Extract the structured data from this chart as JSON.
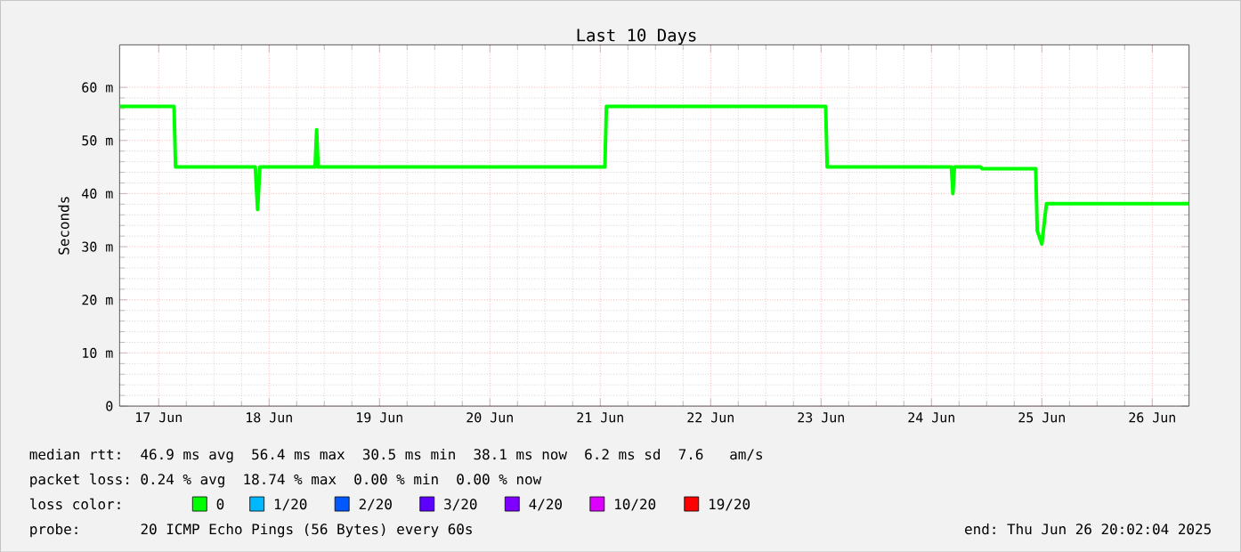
{
  "chart_data": {
    "type": "line",
    "title": "Last 10 Days",
    "ylabel": "Seconds",
    "xlim": [
      "2025-06-17T03:30",
      "2025-06-26T20:00"
    ],
    "xticks": [
      {
        "value": "2025-06-17T12:00",
        "label": "17 Jun"
      },
      {
        "value": "2025-06-18T12:00",
        "label": "18 Jun"
      },
      {
        "value": "2025-06-19T12:00",
        "label": "19 Jun"
      },
      {
        "value": "2025-06-20T12:00",
        "label": "20 Jun"
      },
      {
        "value": "2025-06-21T12:00",
        "label": "21 Jun"
      },
      {
        "value": "2025-06-22T12:00",
        "label": "22 Jun"
      },
      {
        "value": "2025-06-23T12:00",
        "label": "23 Jun"
      },
      {
        "value": "2025-06-24T12:00",
        "label": "24 Jun"
      },
      {
        "value": "2025-06-25T12:00",
        "label": "25 Jun"
      },
      {
        "value": "2025-06-26T12:00",
        "label": "26 Jun"
      }
    ],
    "ylim": [
      0,
      68
    ],
    "yticks": [
      0,
      {
        "value": 10,
        "label": "10 m"
      },
      {
        "value": 20,
        "label": "20 m"
      },
      {
        "value": 30,
        "label": "30 m"
      },
      {
        "value": 40,
        "label": "40 m"
      },
      {
        "value": 50,
        "label": "50 m"
      },
      {
        "value": 60,
        "label": "60 m"
      }
    ],
    "x": [
      "2025-06-17T03:30",
      "2025-06-17T15:20",
      "2025-06-17T15:40",
      "2025-06-18T09:00",
      "2025-06-18T09:30",
      "2025-06-18T10:00",
      "2025-06-18T22:00",
      "2025-06-18T22:20",
      "2025-06-18T22:40",
      "2025-06-21T13:00",
      "2025-06-21T13:20",
      "2025-06-23T13:00",
      "2025-06-23T13:20",
      "2025-06-24T16:20",
      "2025-06-24T16:40",
      "2025-06-24T17:00",
      "2025-06-24T22:40",
      "2025-06-24T23:00",
      "2025-06-25T10:40",
      "2025-06-25T11:00",
      "2025-06-25T12:00",
      "2025-06-25T13:00",
      "2025-06-26T20:00"
    ],
    "series": [
      {
        "name": "0",
        "color": "#00ff00",
        "values": [
          56.4,
          56.4,
          45,
          45,
          37,
          45,
          45,
          52,
          45,
          45,
          56.4,
          56.4,
          45,
          45,
          40,
          45,
          45,
          44.7,
          44.7,
          33,
          30.5,
          38.1,
          38.1
        ]
      },
      {
        "name": "1/20",
        "color": "#00b8ff",
        "values": [
          null,
          null,
          null,
          null,
          null,
          null,
          null,
          null,
          null,
          null,
          null,
          null,
          null,
          null,
          null,
          null,
          null,
          null,
          null,
          null,
          null,
          null,
          null
        ]
      },
      {
        "name": "2/20",
        "color": "#0059ff",
        "values": [
          null,
          null,
          null,
          null,
          null,
          null,
          null,
          null,
          null,
          null,
          null,
          null,
          null,
          null,
          null,
          null,
          null,
          null,
          null,
          null,
          null,
          null,
          null
        ]
      },
      {
        "name": "3/20",
        "color": "#5e00ff",
        "values": [
          null,
          null,
          null,
          null,
          null,
          null,
          null,
          null,
          null,
          null,
          null,
          null,
          null,
          null,
          null,
          null,
          null,
          null,
          null,
          null,
          null,
          null,
          null
        ]
      },
      {
        "name": "4/20",
        "color": "#7e00ff",
        "values": [
          null,
          null,
          null,
          null,
          null,
          null,
          null,
          null,
          null,
          null,
          null,
          null,
          null,
          null,
          null,
          null,
          null,
          null,
          null,
          null,
          null,
          null,
          null
        ]
      },
      {
        "name": "10/20",
        "color": "#dd00ff",
        "values": [
          null,
          null,
          null,
          null,
          null,
          null,
          null,
          null,
          null,
          null,
          null,
          null,
          null,
          null,
          null,
          null,
          null,
          null,
          null,
          null,
          null,
          null,
          null
        ]
      },
      {
        "name": "19/20",
        "color": "#ff0000",
        "values": [
          null,
          null,
          null,
          null,
          null,
          null,
          null,
          null,
          null,
          null,
          null,
          null,
          null,
          null,
          null,
          null,
          null,
          null,
          null,
          null,
          null,
          null,
          null
        ]
      }
    ],
    "legend": "bottom",
    "legend_title": "loss color:",
    "grid": true,
    "annotations": [
      "median rtt:  46.9 ms avg  56.4 ms max  30.5 ms min  38.1 ms now  6.2 ms sd  7.6   am/s",
      "packet loss: 0.24 % avg  18.74 % max  0.00 % min  0.00 % now",
      "probe:       20 ICMP Echo Pings (56 Bytes) every 60s",
      "end: Thu Jun 26 20:02:04 2025"
    ]
  }
}
